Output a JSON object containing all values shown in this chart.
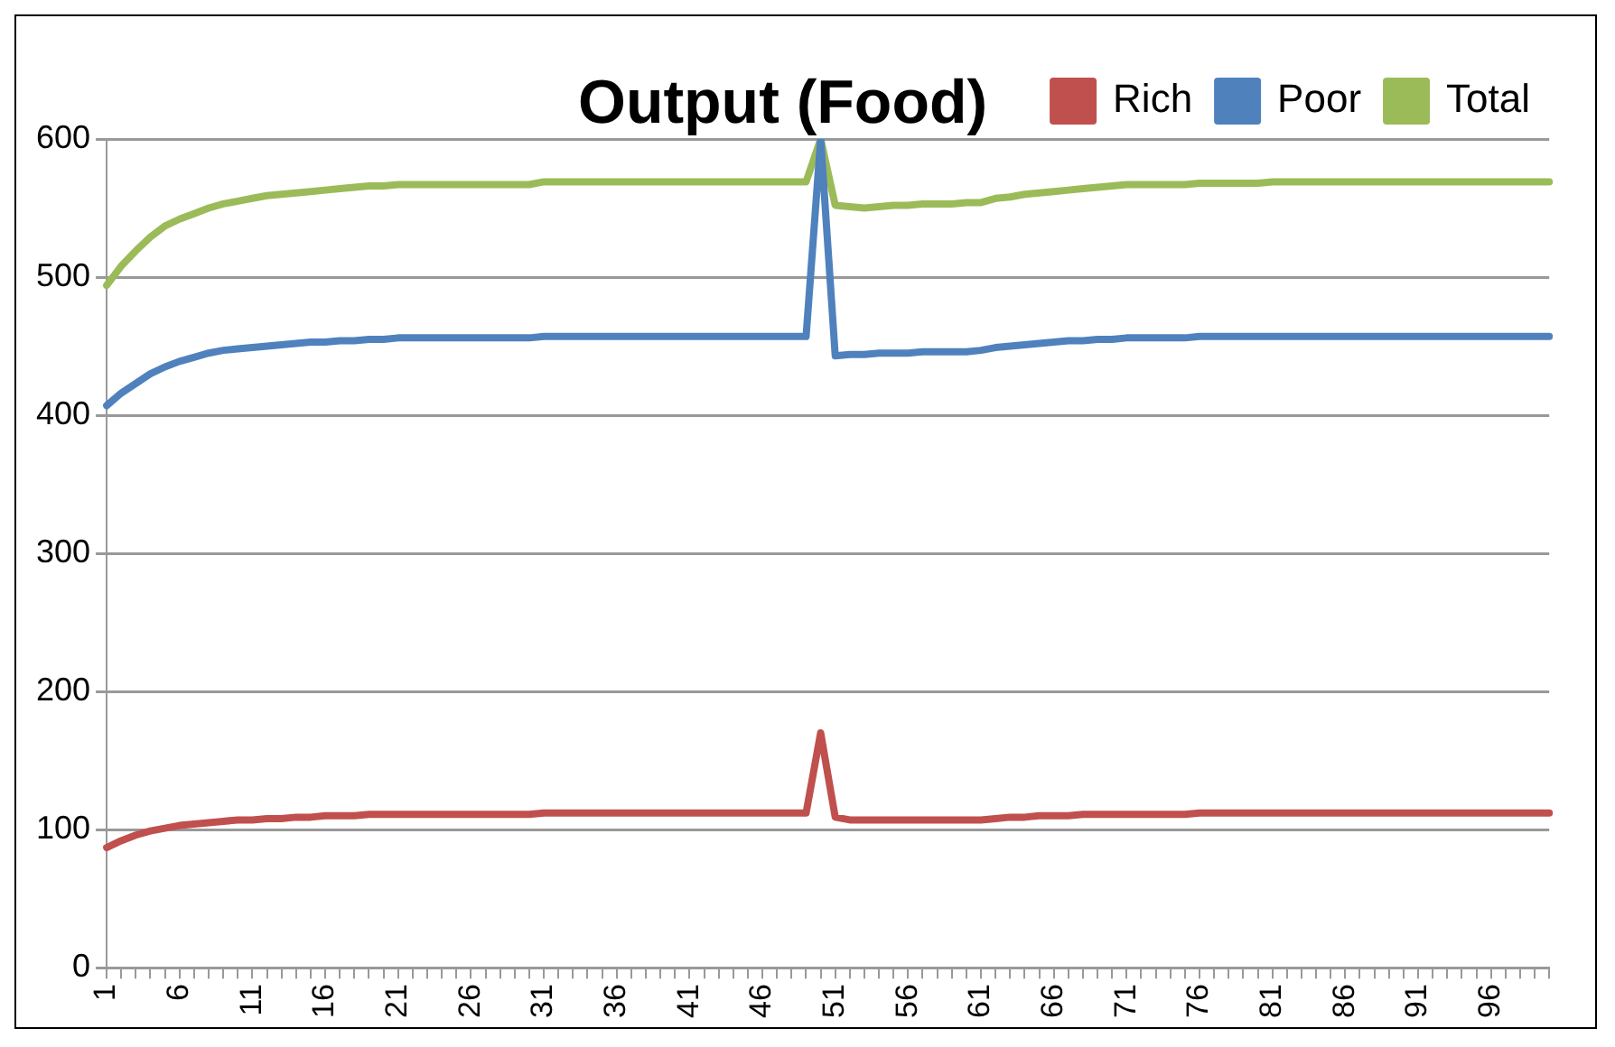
{
  "chart_data": {
    "type": "line",
    "title": "Output (Food)",
    "categories": [
      "1",
      null,
      null,
      null,
      null,
      "6",
      null,
      null,
      null,
      null,
      "11",
      null,
      null,
      null,
      null,
      "16",
      null,
      null,
      null,
      null,
      "21",
      null,
      null,
      null,
      null,
      "26",
      null,
      null,
      null,
      null,
      "31",
      null,
      null,
      null,
      null,
      "36",
      null,
      null,
      null,
      null,
      "41",
      null,
      null,
      null,
      null,
      "46",
      null,
      null,
      null,
      null,
      "51",
      null,
      null,
      null,
      null,
      "56",
      null,
      null,
      null,
      null,
      "61",
      null,
      null,
      null,
      null,
      "66",
      null,
      null,
      null,
      null,
      "71",
      null,
      null,
      null,
      null,
      "76",
      null,
      null,
      null,
      null,
      "81",
      null,
      null,
      null,
      null,
      "86",
      null,
      null,
      null,
      null,
      "91",
      null,
      null,
      null,
      null,
      "96",
      null,
      null,
      null,
      null
    ],
    "series": [
      {
        "name": "Rich",
        "color": "#c0504d",
        "values": [
          87,
          92,
          96,
          99,
          101,
          103,
          104,
          105,
          106,
          107,
          107,
          108,
          108,
          109,
          109,
          110,
          110,
          110,
          111,
          111,
          111,
          111,
          111,
          111,
          111,
          111,
          111,
          111,
          111,
          111,
          112,
          112,
          112,
          112,
          112,
          112,
          112,
          112,
          112,
          112,
          112,
          112,
          112,
          112,
          112,
          112,
          112,
          112,
          112,
          170,
          109,
          107,
          107,
          107,
          107,
          107,
          107,
          107,
          107,
          107,
          107,
          108,
          109,
          109,
          110,
          110,
          110,
          111,
          111,
          111,
          111,
          111,
          111,
          111,
          111,
          112,
          112,
          112,
          112,
          112,
          112,
          112,
          112,
          112,
          112,
          112,
          112,
          112,
          112,
          112,
          112,
          112,
          112,
          112,
          112,
          112,
          112,
          112,
          112,
          112
        ]
      },
      {
        "name": "Poor",
        "color": "#4f81bd",
        "values": [
          407,
          416,
          423,
          430,
          435,
          439,
          442,
          445,
          447,
          448,
          449,
          450,
          451,
          452,
          453,
          453,
          454,
          454,
          455,
          455,
          456,
          456,
          456,
          456,
          456,
          456,
          456,
          456,
          456,
          456,
          457,
          457,
          457,
          457,
          457,
          457,
          457,
          457,
          457,
          457,
          457,
          457,
          457,
          457,
          457,
          457,
          457,
          457,
          457,
          600,
          443,
          444,
          444,
          445,
          445,
          445,
          446,
          446,
          446,
          446,
          447,
          449,
          450,
          451,
          452,
          453,
          454,
          454,
          455,
          455,
          456,
          456,
          456,
          456,
          456,
          457,
          457,
          457,
          457,
          457,
          457,
          457,
          457,
          457,
          457,
          457,
          457,
          457,
          457,
          457,
          457,
          457,
          457,
          457,
          457,
          457,
          457,
          457,
          457,
          457
        ]
      },
      {
        "name": "Total",
        "color": "#9bbb59",
        "values": [
          494,
          508,
          519,
          529,
          537,
          542,
          546,
          550,
          553,
          555,
          557,
          559,
          560,
          561,
          562,
          563,
          564,
          565,
          566,
          566,
          567,
          567,
          567,
          567,
          567,
          567,
          567,
          567,
          567,
          567,
          569,
          569,
          569,
          569,
          569,
          569,
          569,
          569,
          569,
          569,
          569,
          569,
          569,
          569,
          569,
          569,
          569,
          569,
          569,
          600,
          552,
          551,
          550,
          551,
          552,
          552,
          553,
          553,
          553,
          554,
          554,
          557,
          558,
          560,
          561,
          562,
          563,
          564,
          565,
          566,
          567,
          567,
          567,
          567,
          567,
          568,
          568,
          568,
          568,
          568,
          569,
          569,
          569,
          569,
          569,
          569,
          569,
          569,
          569,
          569,
          569,
          569,
          569,
          569,
          569,
          569,
          569,
          569,
          569,
          569
        ]
      }
    ],
    "ylim": [
      0,
      600
    ],
    "yticks": [
      0,
      100,
      200,
      300,
      400,
      500,
      600
    ],
    "grid": "y",
    "legend": "top right",
    "marker": "none",
    "line_style": "solid"
  }
}
